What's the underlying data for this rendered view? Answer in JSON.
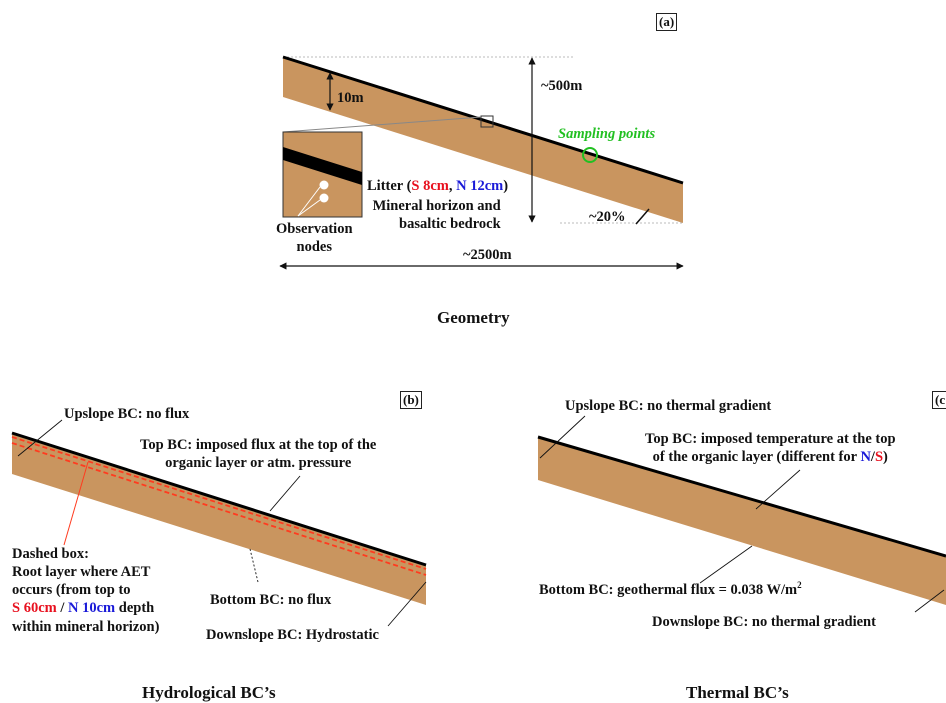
{
  "colors": {
    "soil": "#c9955f",
    "litter": "#000000",
    "red_text": "#e8101e",
    "blue_text": "#1a1ad8",
    "green_text": "#22c022",
    "root_zone_dash": "#ff3b1f"
  },
  "panel_a": {
    "tag": "(a)",
    "caption": "Geometry",
    "label_10m": "10m",
    "label_500m": "~500m",
    "label_2500m": "~2500m",
    "label_slope": "~20%",
    "sampling_points": "Sampling points",
    "litter_prefix": "Litter (",
    "litter_s": "S 8cm",
    "litter_sep": ", ",
    "litter_n": "N 12cm",
    "litter_suffix": ")",
    "mineral_line1": "Mineral horizon and",
    "mineral_line2": "basaltic bedrock",
    "observation_line1": "Observation",
    "observation_line2": "nodes"
  },
  "panel_b": {
    "tag": "(b)",
    "caption": "Hydrological BC’s",
    "upslope": "Upslope BC: no flux",
    "top_line1": "Top BC: imposed flux at the top of the",
    "top_line2": "organic layer or atm. pressure",
    "dashed_line1": "Dashed box:",
    "dashed_line2": "Root layer where AET",
    "dashed_line3": "occurs (from top to",
    "dashed_s": "S 60cm",
    "dashed_sep": " / ",
    "dashed_n": "N 10cm",
    "dashed_suffix": " depth",
    "dashed_line5": "within mineral horizon)",
    "bottom": "Bottom BC: no flux",
    "downslope": "Downslope BC: Hydrostatic"
  },
  "panel_c": {
    "tag": "(c",
    "caption": "Thermal BC’s",
    "upslope": "Upslope BC: no thermal gradient",
    "top_line1": "Top BC: imposed temperature at the top",
    "top_line2_prefix": "of the organic layer (different for ",
    "top_n": "N",
    "top_slash": "/",
    "top_s": "S",
    "top_suffix": ")",
    "bottom_prefix": "Bottom BC: geothermal flux = 0.038 W/m",
    "bottom_sup": "2",
    "downslope": "Downslope BC: no thermal gradient"
  }
}
